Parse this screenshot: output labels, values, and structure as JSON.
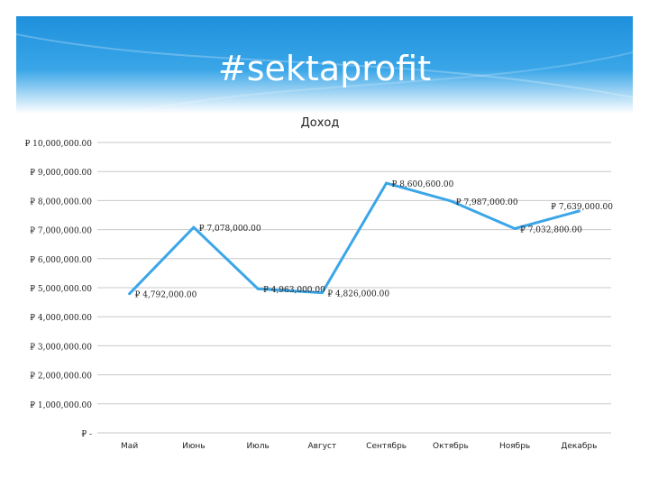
{
  "slide": {
    "title": "#sektaprofit"
  },
  "colors": {
    "header": "#1e90dc",
    "line": "#3aa6e8",
    "grid": "#c8c8c8"
  },
  "chart_data": {
    "type": "line",
    "title": "Доход",
    "categories": [
      "Май",
      "Июнь",
      "Июль",
      "Август",
      "Сентябрь",
      "Октябрь",
      "Ноябрь",
      "Декабрь"
    ],
    "series": [
      {
        "values": [
          4792000,
          7078000,
          4963000,
          4826000,
          8600600,
          7987000,
          7032800,
          7639000
        ]
      }
    ],
    "data_labels": [
      "₽ 4,792,000.00",
      "₽ 7,078,000.00",
      "₽ 4,963,000.00",
      "₽ 4,826,000.00",
      "₽ 8,600,600.00",
      "₽ 7,987,000.00",
      "₽ 7,032,800.00",
      "₽ 7,639,000.00"
    ],
    "ylim": [
      0,
      10000000
    ],
    "yticks": [
      {
        "value": 10000000,
        "label": "₽ 10,000,000.00"
      },
      {
        "value": 9000000,
        "label": "₽ 9,000,000.00"
      },
      {
        "value": 8000000,
        "label": "₽ 8,000,000.00"
      },
      {
        "value": 7000000,
        "label": "₽ 7,000,000.00"
      },
      {
        "value": 6000000,
        "label": "₽ 6,000,000.00"
      },
      {
        "value": 5000000,
        "label": "₽ 5,000,000.00"
      },
      {
        "value": 4000000,
        "label": "₽ 4,000,000.00"
      },
      {
        "value": 3000000,
        "label": "₽ 3,000,000.00"
      },
      {
        "value": 2000000,
        "label": "₽ 2,000,000.00"
      },
      {
        "value": 1000000,
        "label": "₽ 1,000,000.00"
      },
      {
        "value": 0,
        "label": "₽ -"
      }
    ],
    "grid": true,
    "legend": "none"
  }
}
